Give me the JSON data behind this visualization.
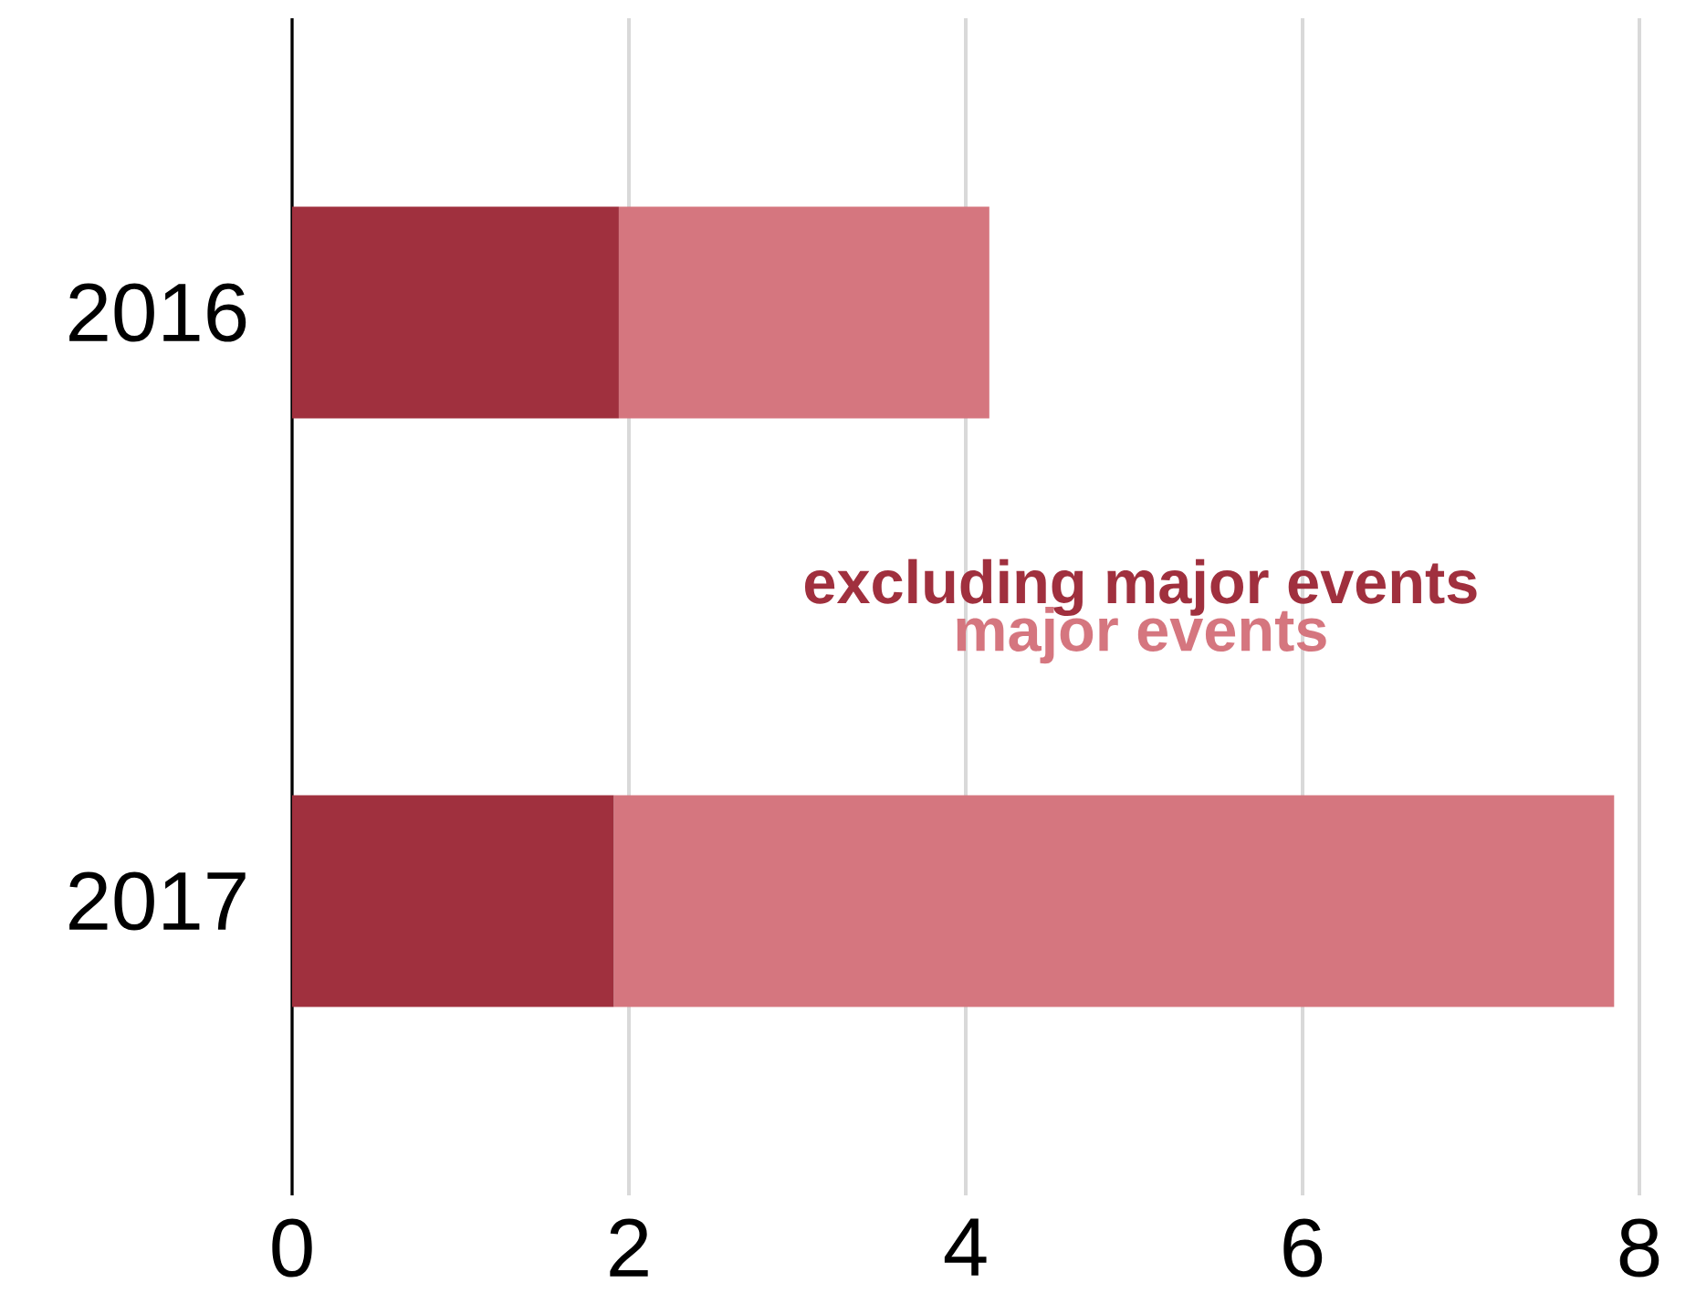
{
  "chart_data": {
    "type": "bar",
    "orientation": "horizontal",
    "stacked": true,
    "categories": [
      "2016",
      "2017"
    ],
    "series": [
      {
        "name": "excluding major events",
        "color": "#a0303e",
        "values": [
          1.94,
          1.91
        ]
      },
      {
        "name": "major events",
        "color": "#d5767f",
        "values": [
          2.2,
          5.94
        ]
      }
    ],
    "xlim": [
      0,
      8
    ],
    "xticks": [
      0,
      2,
      4,
      6,
      8
    ],
    "grid": "x",
    "legend": "right"
  }
}
